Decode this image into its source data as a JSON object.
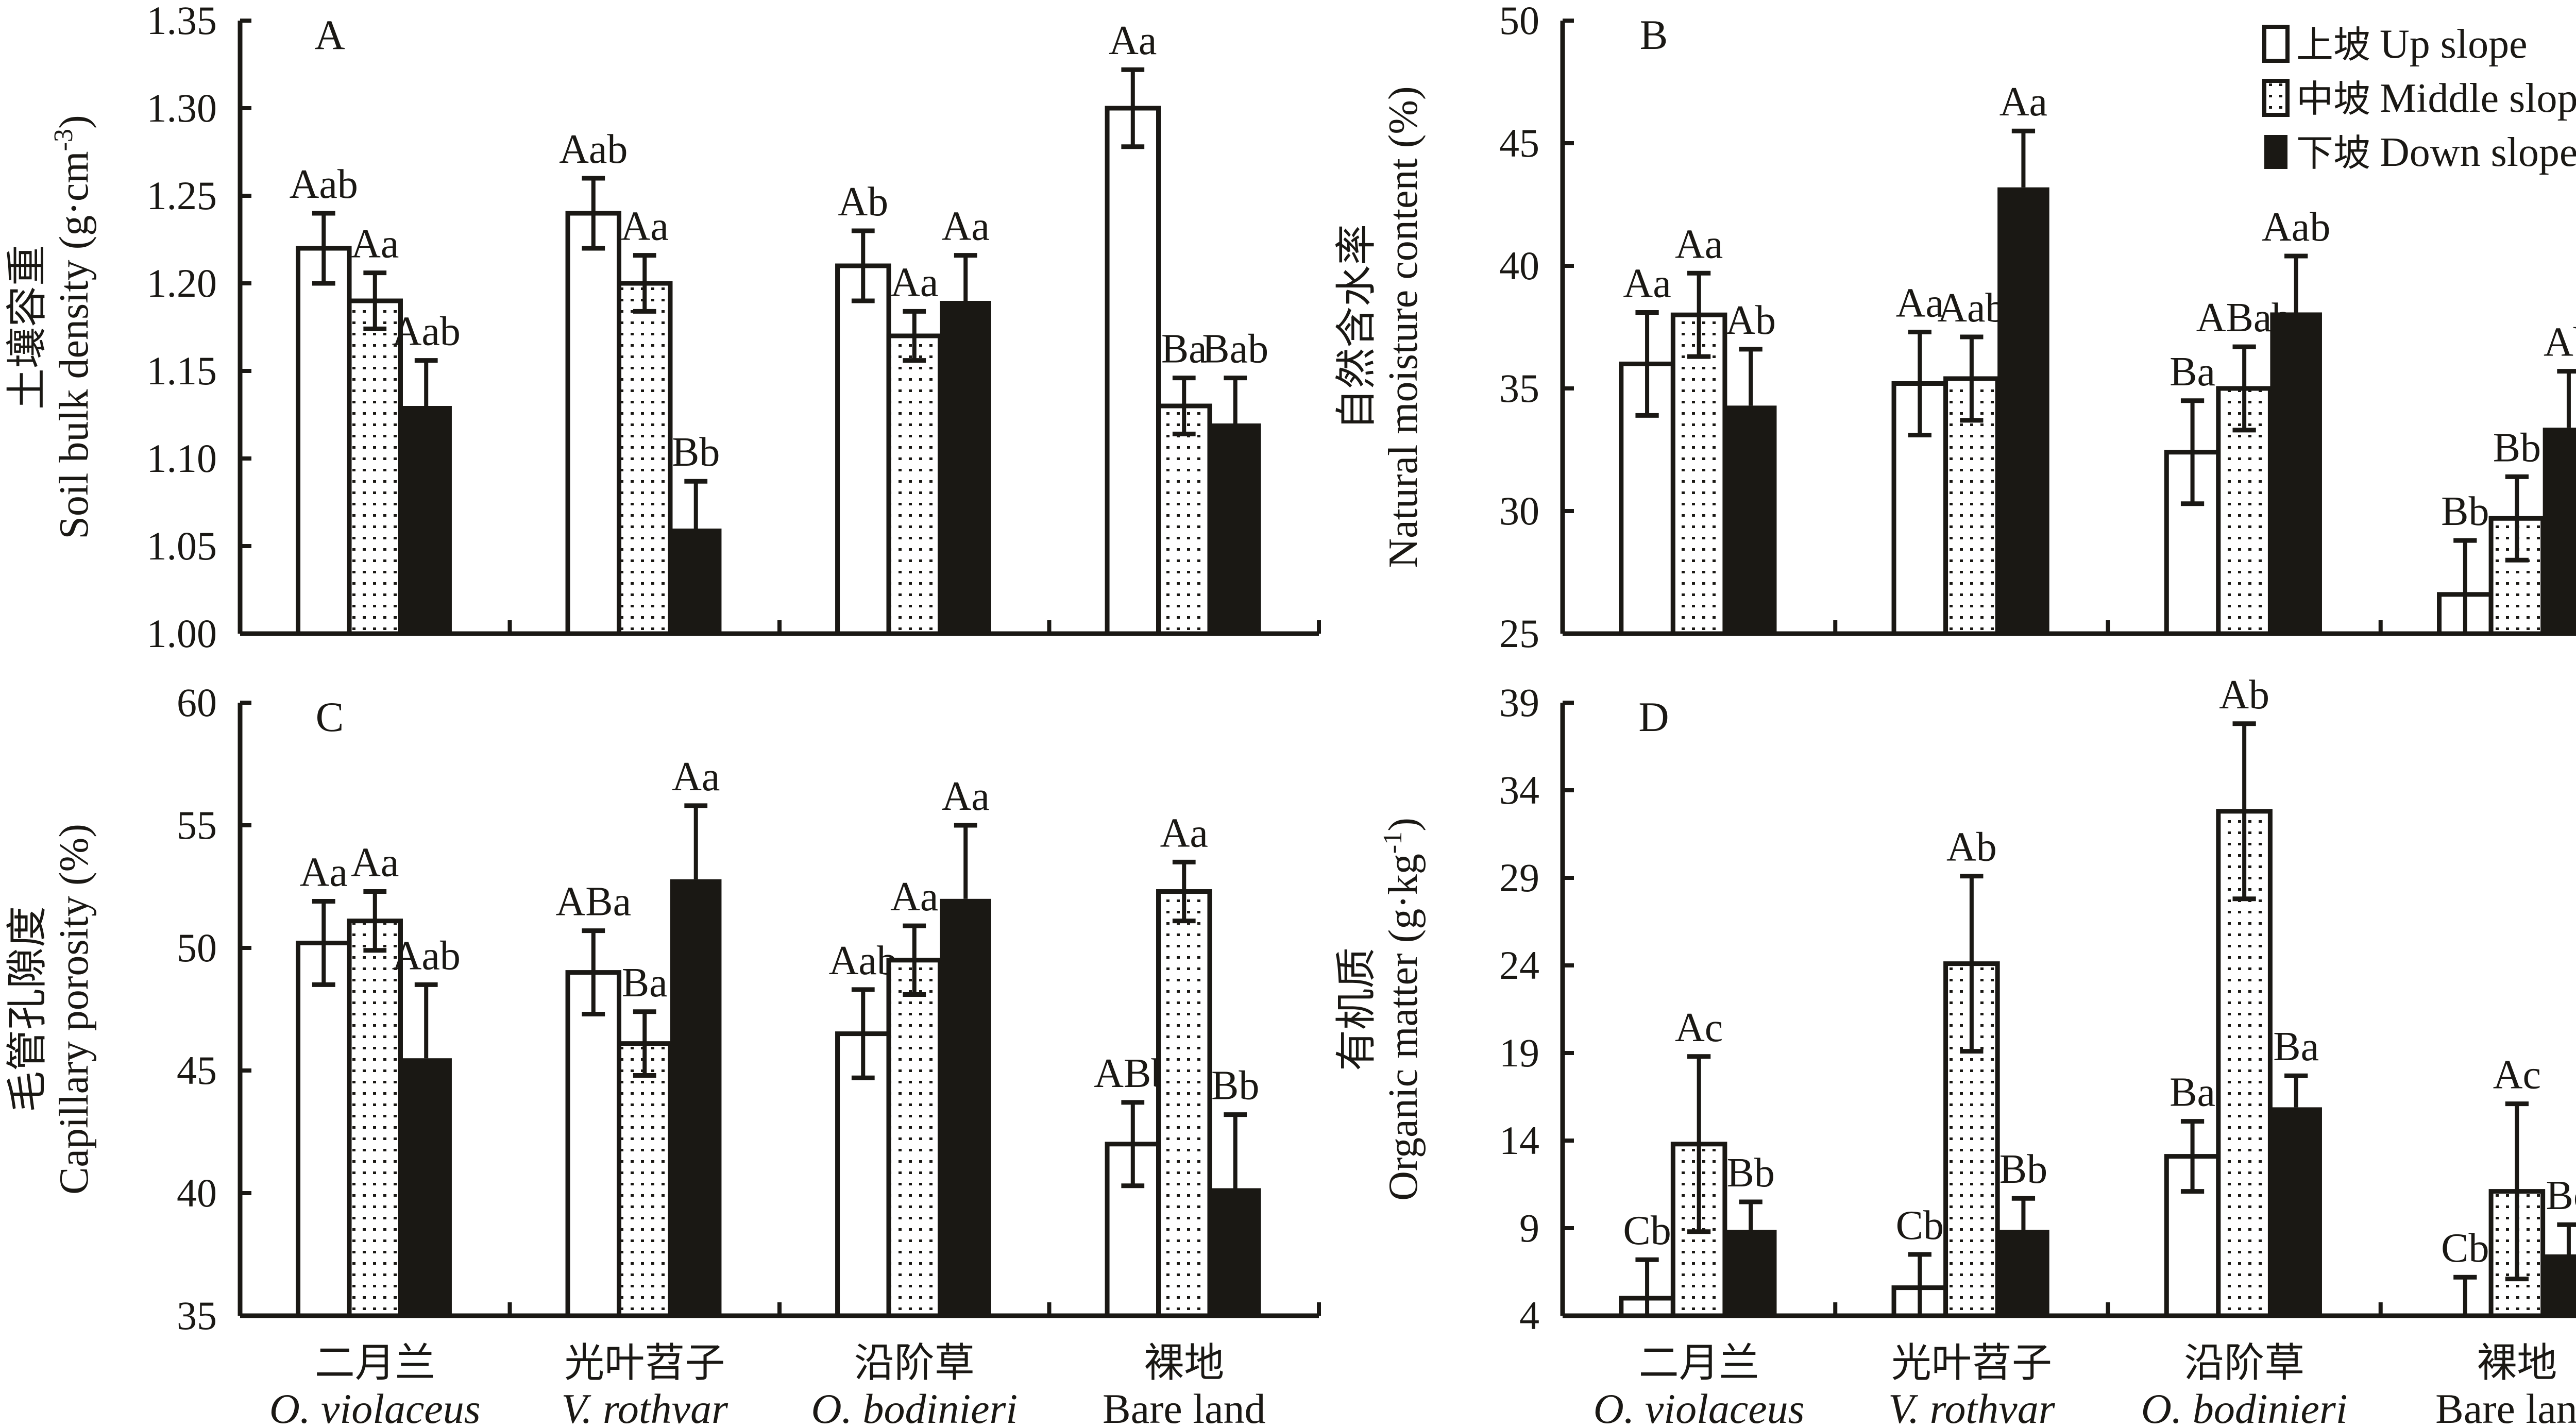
{
  "chart_data": [
    {
      "type": "bar",
      "panel": "A",
      "ylabel_cn": "土壤容重",
      "ylabel_en": "Soil bulk density (g·cm",
      "ylabel_sup": "-3",
      "ylabel_close": ")",
      "ylim": [
        1.0,
        1.35
      ],
      "yticks": [
        "1.00",
        "1.05",
        "1.10",
        "1.15",
        "1.20",
        "1.25",
        "1.30",
        "1.35"
      ],
      "categories": [
        "二月兰",
        "光叶苕子",
        "沿阶草",
        "裸地"
      ],
      "series": [
        {
          "name": "上坡 Up slope",
          "values": [
            1.22,
            1.24,
            1.21,
            1.3
          ],
          "errors": [
            0.02,
            0.02,
            0.02,
            0.022
          ],
          "labels": [
            "Aab",
            "Aab",
            "Ab",
            "Aa"
          ]
        },
        {
          "name": "中坡 Middle slope",
          "values": [
            1.19,
            1.2,
            1.17,
            1.13
          ],
          "errors": [
            0.016,
            0.016,
            0.014,
            0.016
          ],
          "labels": [
            "Aa",
            "Aa",
            "Aa",
            "Ba"
          ]
        },
        {
          "name": "下坡 Down slope",
          "values": [
            1.13,
            1.06,
            1.19,
            1.12
          ],
          "errors": [
            0.026,
            0.027,
            0.026,
            0.026
          ],
          "labels": [
            "Aab",
            "Bb",
            "Aa",
            "Bab"
          ]
        }
      ]
    },
    {
      "type": "bar",
      "panel": "B",
      "ylabel_cn": "自然含水率",
      "ylabel_en": "Natural moisture content (%)",
      "ylim": [
        25,
        50
      ],
      "yticks": [
        "25",
        "30",
        "35",
        "40",
        "45",
        "50"
      ],
      "categories": [
        "二月兰",
        "光叶苕子",
        "沿阶草",
        "裸地"
      ],
      "series": [
        {
          "name": "上坡 Up slope",
          "values": [
            36.0,
            35.2,
            32.4,
            26.6
          ],
          "errors": [
            2.1,
            2.1,
            2.1,
            2.2
          ],
          "labels": [
            "Aa",
            "Aa",
            "Ba",
            "Bb"
          ]
        },
        {
          "name": "中坡 Middle slope",
          "values": [
            38.0,
            35.4,
            35.0,
            29.7
          ],
          "errors": [
            1.7,
            1.7,
            1.7,
            1.7
          ],
          "labels": [
            "Aa",
            "Aab",
            "ABab",
            "Bb"
          ]
        },
        {
          "name": "下坡 Down slope",
          "values": [
            34.3,
            43.2,
            38.1,
            33.4
          ],
          "errors": [
            2.3,
            2.3,
            2.3,
            2.3
          ],
          "labels": [
            "Ab",
            "Aa",
            "Aab",
            "Ab"
          ]
        }
      ]
    },
    {
      "type": "bar",
      "panel": "C",
      "ylabel_cn": "毛管孔隙度",
      "ylabel_en": "Capillary porosity (%)",
      "ylim": [
        35,
        60
      ],
      "yticks": [
        "35",
        "40",
        "45",
        "50",
        "55",
        "60"
      ],
      "categories": [
        "二月兰",
        "光叶苕子",
        "沿阶草",
        "裸地"
      ],
      "series": [
        {
          "name": "上坡 Up slope",
          "values": [
            50.2,
            49.0,
            46.5,
            42.0
          ],
          "errors": [
            1.7,
            1.7,
            1.8,
            1.7
          ],
          "labels": [
            "Aa",
            "ABa",
            "Aab",
            "ABb"
          ]
        },
        {
          "name": "中坡 Middle slope",
          "values": [
            51.1,
            46.1,
            49.5,
            52.3
          ],
          "errors": [
            1.2,
            1.3,
            1.4,
            1.2
          ],
          "labels": [
            "Aa",
            "Ba",
            "Aa",
            "Aa"
          ]
        },
        {
          "name": "下坡 Down slope",
          "values": [
            45.5,
            52.8,
            52.0,
            40.2
          ],
          "errors": [
            3.0,
            3.0,
            3.0,
            3.0
          ],
          "labels": [
            "Aab",
            "Aa",
            "Aa",
            "Bb"
          ]
        }
      ]
    },
    {
      "type": "bar",
      "panel": "D",
      "ylabel_cn": "有机质",
      "ylabel_en": "Organic matter (g·kg",
      "ylabel_sup": "-1",
      "ylabel_close": ")",
      "ylim": [
        4,
        39
      ],
      "yticks": [
        "4",
        "9",
        "14",
        "19",
        "24",
        "29",
        "34",
        "39"
      ],
      "categories": [
        "二月兰",
        "光叶苕子",
        "沿阶草",
        "裸地"
      ],
      "series": [
        {
          "name": "上坡 Up slope",
          "values": [
            5.0,
            5.6,
            13.1,
            4.0
          ],
          "errors": [
            2.2,
            1.9,
            2.0,
            2.2
          ],
          "labels": [
            "Cb",
            "Cb",
            "Ba",
            "Cb"
          ]
        },
        {
          "name": "中坡 Middle slope",
          "values": [
            13.8,
            24.1,
            32.8,
            11.1
          ],
          "errors": [
            5.0,
            5.0,
            5.0,
            5.0
          ],
          "labels": [
            "Ac",
            "Ab",
            "Ab",
            "Ac"
          ]
        },
        {
          "name": "下坡 Down slope",
          "values": [
            8.9,
            8.9,
            15.9,
            7.5
          ],
          "errors": [
            1.6,
            1.8,
            1.8,
            1.7
          ],
          "labels": [
            "Bb",
            "Bb",
            "Ba",
            "Bc"
          ]
        }
      ]
    }
  ],
  "legend": [
    {
      "cn": "上坡",
      "en": "Up slope",
      "pattern": "white"
    },
    {
      "cn": "中坡",
      "en": "Middle slope",
      "pattern": "dotted"
    },
    {
      "cn": "下坡",
      "en": "Down slope",
      "pattern": "black"
    }
  ],
  "x_categories": [
    {
      "cn": "二月兰",
      "en": "O. violaceus",
      "italic": true
    },
    {
      "cn": "光叶苕子",
      "en": "V. rothvar",
      "italic": true
    },
    {
      "cn": "沿阶草",
      "en": "O. bodinieri",
      "italic": true
    },
    {
      "cn": "裸地",
      "en": "Bare land",
      "italic": false
    }
  ],
  "colors": {
    "ink": "#1a1814",
    "background": "#ffffff"
  }
}
